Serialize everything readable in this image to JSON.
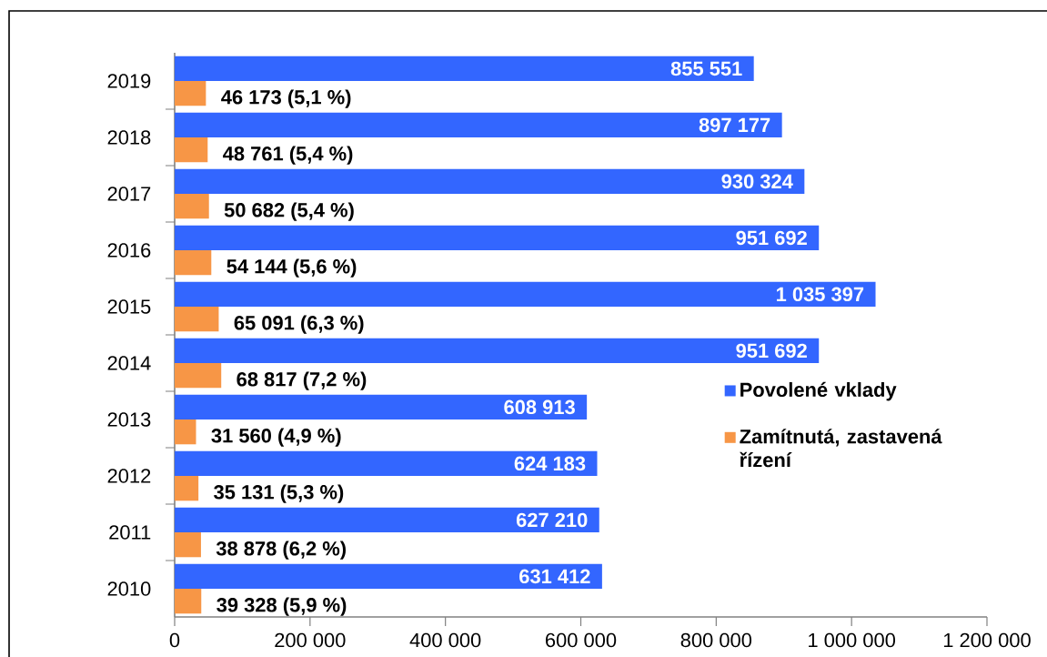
{
  "chart_data": {
    "type": "bar",
    "orientation": "horizontal",
    "categories": [
      "2019",
      "2018",
      "2017",
      "2016",
      "2015",
      "2014",
      "2013",
      "2012",
      "2011",
      "2010"
    ],
    "series": [
      {
        "name": "Povolené vklady",
        "color": "#3366ff",
        "values": [
          855551,
          897177,
          930324,
          951692,
          1035397,
          951692,
          608913,
          624183,
          627210,
          631412
        ],
        "value_labels": [
          "855 551",
          "897 177",
          "930 324",
          "951 692",
          "1 035 397",
          "951 692",
          "608 913",
          "624 183",
          "627 210",
          "631 412"
        ]
      },
      {
        "name": "Zamítnutá, zastavená řízení",
        "color": "#f79646",
        "values": [
          46173,
          48761,
          50682,
          54144,
          65091,
          68817,
          31560,
          35131,
          38878,
          39328
        ],
        "value_labels": [
          "46 173 (5,1 %)",
          "48 761 (5,4 %)",
          "50 682 (5,4 %)",
          "54 144 (5,6 %)",
          "65 091 (6,3 %)",
          "68 817 (7,2 %)",
          "31 560 (4,9 %)",
          "35 131 (5,3 %)",
          "38 878 (6,2 %)",
          "39 328 (5,9 %)"
        ]
      }
    ],
    "xlim": [
      0,
      1200000
    ],
    "xticks": [
      0,
      {
        "value": 200000,
        "label": "200 000"
      },
      {
        "value": 400000,
        "label": "400 000"
      },
      {
        "value": 600000,
        "label": "600 000"
      },
      {
        "value": 800000,
        "label": "800 000"
      },
      {
        "value": 1000000,
        "label": "1 000 000"
      },
      {
        "value": 1200000,
        "label": "1 200 000"
      }
    ],
    "grid": false,
    "legend": "right"
  }
}
